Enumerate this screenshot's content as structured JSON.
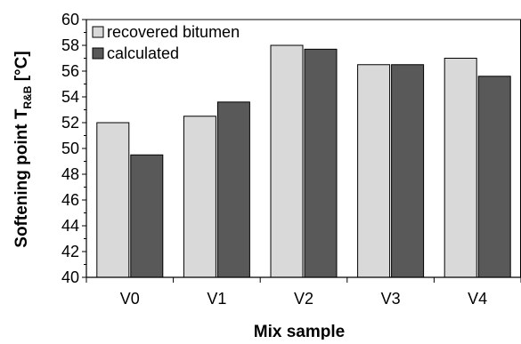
{
  "chart_data": {
    "type": "bar",
    "categories": [
      "V0",
      "V1",
      "V2",
      "V3",
      "V4"
    ],
    "series": [
      {
        "name": "recovered bitumen",
        "values": [
          52.0,
          52.5,
          58.0,
          56.5,
          57.0
        ],
        "color": "#d9d9d9",
        "stroke": "#000000"
      },
      {
        "name": "calculated",
        "values": [
          49.5,
          53.6,
          57.7,
          56.5,
          55.6
        ],
        "color": "#595959",
        "stroke": "#000000"
      }
    ],
    "xlabel": "Mix sample",
    "ylabel": {
      "main": "Softening point T",
      "subscript": "R&B",
      "suffix": " [°C]"
    },
    "ylim": [
      40,
      60
    ],
    "yticks": [
      40,
      42,
      44,
      46,
      48,
      50,
      52,
      54,
      56,
      58,
      60
    ],
    "grid": false,
    "legend_position": "top-left"
  }
}
